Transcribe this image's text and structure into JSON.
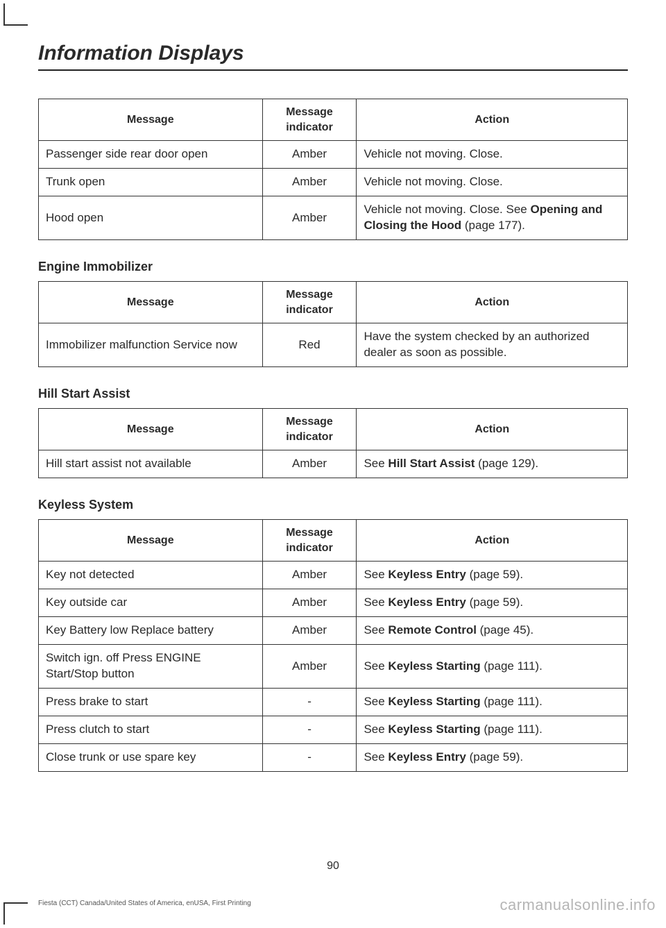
{
  "chapter_title": "Information Displays",
  "page_number": "90",
  "footer_left": "Fiesta (CCT) Canada/United States of America, enUSA, First Printing",
  "watermark": "carmanualsonline.info",
  "table1": {
    "headers": {
      "message": "Message",
      "indicator": "Message indicator",
      "action": "Action"
    },
    "rows": [
      {
        "message": "Passenger side rear door open",
        "indicator": "Amber",
        "action_pre": "Vehicle not moving. Close."
      },
      {
        "message": "Trunk open",
        "indicator": "Amber",
        "action_pre": "Vehicle not moving. Close."
      },
      {
        "message": "Hood open",
        "indicator": "Amber",
        "action_pre": "Vehicle not moving. Close.  See ",
        "action_bold": "Opening and Closing the Hood",
        "action_post": " (page 177)."
      }
    ]
  },
  "section2": {
    "heading": "Engine Immobilizer"
  },
  "table2": {
    "headers": {
      "message": "Message",
      "indicator": "Message indicator",
      "action": "Action"
    },
    "rows": [
      {
        "message": "Immobilizer malfunction Service now",
        "indicator": "Red",
        "action_pre": "Have the system checked by an authorized dealer as soon as possible."
      }
    ]
  },
  "section3": {
    "heading": "Hill Start Assist"
  },
  "table3": {
    "headers": {
      "message": "Message",
      "indicator": "Message indicator",
      "action": "Action"
    },
    "rows": [
      {
        "message": "Hill start assist not available",
        "indicator": "Amber",
        "action_pre": "See ",
        "action_bold": "Hill Start Assist",
        "action_post": " (page 129)."
      }
    ]
  },
  "section4": {
    "heading": "Keyless System"
  },
  "table4": {
    "headers": {
      "message": "Message",
      "indicator": "Message indicator",
      "action": "Action"
    },
    "rows": [
      {
        "message": "Key not detected",
        "indicator": "Amber",
        "action_pre": "See ",
        "action_bold": "Keyless Entry",
        "action_post": " (page 59)."
      },
      {
        "message": "Key outside car",
        "indicator": "Amber",
        "action_pre": "See ",
        "action_bold": "Keyless Entry",
        "action_post": " (page 59)."
      },
      {
        "message": "Key Battery low Replace battery",
        "indicator": "Amber",
        "action_pre": "See ",
        "action_bold": "Remote Control",
        "action_post": " (page 45)."
      },
      {
        "message": "Switch ign. off Press ENGINE Start/Stop button",
        "indicator": "Amber",
        "action_pre": "See ",
        "action_bold": "Keyless Starting",
        "action_post": " (page 111)."
      },
      {
        "message": "Press brake to start",
        "indicator": "-",
        "action_pre": "See ",
        "action_bold": "Keyless Starting",
        "action_post": " (page 111)."
      },
      {
        "message": "Press clutch to start",
        "indicator": "-",
        "action_pre": "See ",
        "action_bold": "Keyless Starting",
        "action_post": " (page 111)."
      },
      {
        "message": "Close trunk or use spare key",
        "indicator": "-",
        "action_pre": "See ",
        "action_bold": "Keyless Entry",
        "action_post": " (page 59)."
      }
    ]
  }
}
